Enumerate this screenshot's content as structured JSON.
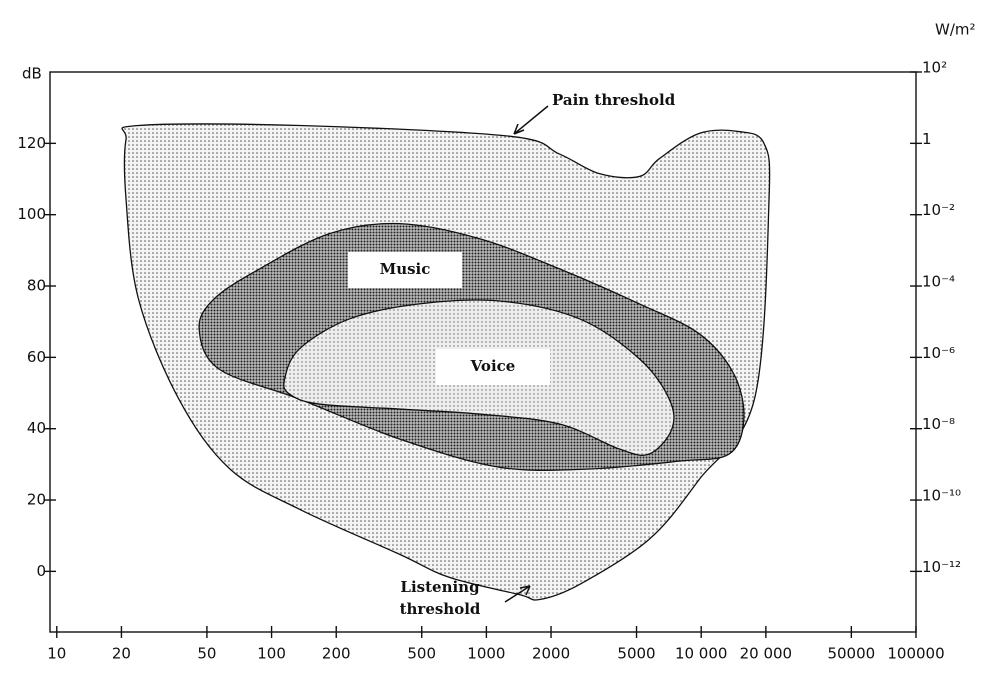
{
  "chart_data": {
    "type": "region",
    "ylabel": "dB",
    "y2label": "W/m²",
    "xscale": "log",
    "y2scale": "log",
    "xlim": [
      9.3,
      100000
    ],
    "ylim": [
      -17,
      140
    ],
    "y2lim": [
      2e-14,
      100
    ],
    "xticks": [
      10,
      20,
      50,
      100,
      200,
      500,
      1000,
      2000,
      5000,
      {
        "value": 10000,
        "label": "10 000"
      },
      {
        "value": 20000,
        "label": "20 000"
      },
      50000,
      100000
    ],
    "yticks": [
      0,
      20,
      40,
      60,
      80,
      100,
      120
    ],
    "y2ticks": [
      {
        "value": 100,
        "label": "10²"
      },
      1,
      {
        "value": 0.01,
        "label": "10⁻²"
      },
      {
        "value": 0.0001,
        "label": "10⁻⁴"
      },
      {
        "value": 1e-06,
        "label": "10⁻⁶"
      },
      {
        "value": 1e-08,
        "label": "10⁻⁸"
      },
      {
        "value": 1e-10,
        "label": "10⁻¹⁰"
      },
      {
        "value": 1e-12,
        "label": "10⁻¹²"
      }
    ],
    "series": [
      {
        "color": "#9a9a9a",
        "x": [
          21,
          24,
          135,
          1280,
          2190,
          3360,
          5150,
          6380,
          9800,
          15000,
          19600,
          20700,
          17700,
          9800,
          5730,
          2710,
          1770,
          1420,
          673,
          394,
          135,
          64,
          37,
          24,
          21
        ],
        "values": [
          121,
          125,
          125,
          122,
          117,
          111.5,
          110.7,
          115.7,
          122.8,
          123.3,
          120,
          104.5,
          48.3,
          25.8,
          9,
          -3.7,
          -7.9,
          -6.5,
          -1.7,
          4.8,
          17.4,
          28.7,
          48.3,
          76.4,
          104.5
        ]
      },
      {
        "name": "Music",
        "color": "#444444",
        "x": [
          46,
          54,
          88,
          186,
          394,
          927,
          2190,
          5150,
          9800,
          14200,
          15800,
          13500,
          7900,
          3010,
          1150,
          394,
          135,
          57
        ],
        "values": [
          68,
          76.4,
          84.8,
          94.7,
          97.5,
          93.3,
          84.8,
          75,
          66.6,
          55.3,
          42.7,
          32.9,
          30.9,
          28.7,
          29.2,
          37.1,
          48.3,
          56.7
        ]
      },
      {
        "name": "Voice",
        "color": "#a8a8a8",
        "x": [
          115,
          135,
          231,
          488,
          1150,
          2710,
          5150,
          7100,
          7300,
          5730,
          4160,
          2190,
          927,
          394,
          167,
          121
        ],
        "values": [
          53.9,
          62.4,
          70.8,
          75,
          75.8,
          70.8,
          59.6,
          48.3,
          39.9,
          32.9,
          34.3,
          41.3,
          44.1,
          45.5,
          46.9,
          49.7
        ]
      }
    ],
    "annotations": [
      {
        "text": "Pain threshold"
      },
      {
        "lines": [
          "Listening",
          "threshold"
        ]
      }
    ]
  }
}
